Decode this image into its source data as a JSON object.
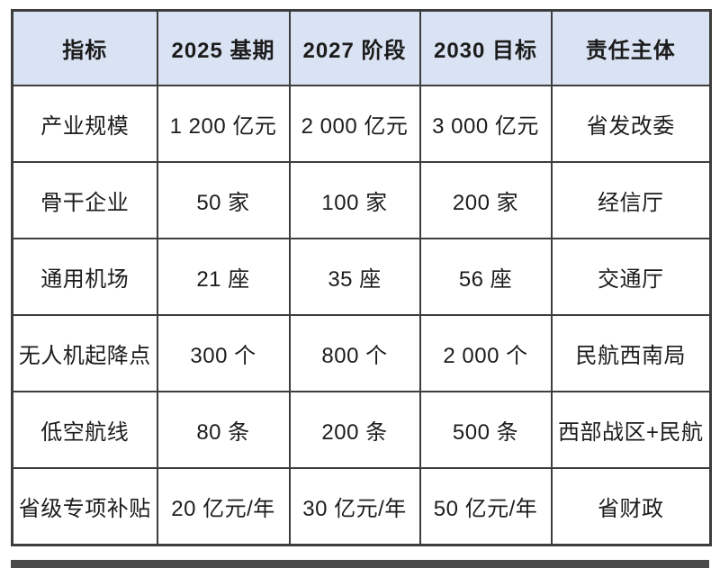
{
  "table": {
    "columns": [
      "指标",
      "2025 基期",
      "2027 阶段",
      "2030 目标",
      "责任主体"
    ],
    "rows": [
      [
        "产业规模",
        "1 200 亿元",
        "2 000 亿元",
        "3 000 亿元",
        "省发改委"
      ],
      [
        "骨干企业",
        "50 家",
        "100 家",
        "200 家",
        "经信厅"
      ],
      [
        "通用机场",
        "21 座",
        "35 座",
        "56 座",
        "交通厅"
      ],
      [
        "无人机起降点",
        "300 个",
        "800 个",
        "2 000 个",
        "民航西南局"
      ],
      [
        "低空航线",
        "80 条",
        "200 条",
        "500 条",
        "西部战区+民航"
      ],
      [
        "省级专项补贴",
        "20 亿元/年",
        "30 亿元/年",
        "50 亿元/年",
        "省财政"
      ]
    ]
  },
  "colors": {
    "header_bg": "#dae3f3",
    "body_bg": "#ffffff",
    "border": "#3d3d3d",
    "text": "#1c1c1c",
    "next_table_edge": "#4a4a4a"
  }
}
